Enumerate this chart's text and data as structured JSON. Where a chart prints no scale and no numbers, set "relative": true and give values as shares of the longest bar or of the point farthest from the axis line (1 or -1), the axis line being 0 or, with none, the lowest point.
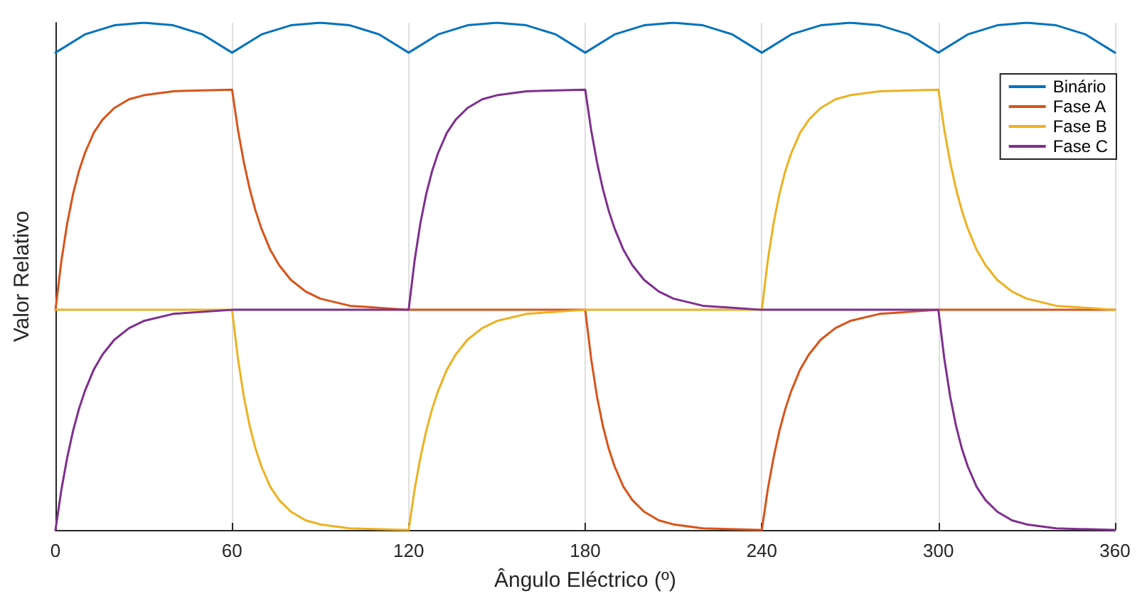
{
  "chart_data": {
    "type": "line",
    "relative": true,
    "xlabel": "Ângulo Eléctrico (º)",
    "ylabel": "Valor Relativo",
    "xlim": [
      0,
      360
    ],
    "xticks": [
      0,
      60,
      120,
      180,
      240,
      300,
      360
    ],
    "grid": "x",
    "legend": "top right",
    "tick_labels": "x",
    "marker": "none",
    "line_style": "solid",
    "series": [
      {
        "name": "Binário",
        "color": "#0072bd",
        "x": [
          0,
          10,
          20,
          30,
          40,
          50,
          60,
          70,
          80,
          90,
          100,
          110,
          120,
          130,
          140,
          150,
          160,
          170,
          180,
          190,
          200,
          210,
          220,
          230,
          240,
          250,
          260,
          270,
          280,
          290,
          300,
          310,
          320,
          330,
          340,
          350,
          360
        ],
        "values": [
          0.941,
          0.977,
          0.995,
          1,
          0.995,
          0.977,
          0.941,
          0.977,
          0.995,
          1,
          0.995,
          0.977,
          0.941,
          0.977,
          0.995,
          1,
          0.995,
          0.977,
          0.941,
          0.977,
          0.995,
          1,
          0.995,
          0.977,
          0.941,
          0.977,
          0.995,
          1,
          0.995,
          0.977,
          0.941,
          0.977,
          0.995,
          1,
          0.995,
          0.977,
          0.941
        ]
      },
      {
        "name": "Fase A",
        "color": "#d95319",
        "x": [
          0,
          2,
          4,
          6,
          8,
          10,
          13,
          16,
          20,
          25,
          30,
          40,
          60,
          62,
          64,
          66,
          68,
          70,
          73,
          76,
          80,
          85,
          90,
          100,
          120,
          180,
          182,
          184,
          186,
          188,
          190,
          193,
          196,
          200,
          205,
          210,
          220,
          240,
          242,
          244,
          246,
          248,
          250,
          253,
          256,
          260,
          265,
          270,
          280,
          300,
          360
        ],
        "values": [
          0.434,
          0.53,
          0.605,
          0.663,
          0.708,
          0.743,
          0.783,
          0.809,
          0.832,
          0.849,
          0.857,
          0.865,
          0.868,
          0.789,
          0.725,
          0.672,
          0.629,
          0.594,
          0.552,
          0.522,
          0.493,
          0.47,
          0.456,
          0.442,
          0.434,
          0.434,
          0.338,
          0.263,
          0.205,
          0.16,
          0.125,
          0.085,
          0.059,
          0.036,
          0.019,
          0.011,
          0.003,
          0,
          0.079,
          0.143,
          0.196,
          0.239,
          0.274,
          0.316,
          0.346,
          0.375,
          0.398,
          0.412,
          0.426,
          0.434,
          0.434
        ]
      },
      {
        "name": "Fase B",
        "color": "#edb120",
        "x": [
          0,
          60,
          62,
          64,
          66,
          68,
          70,
          73,
          76,
          80,
          85,
          90,
          100,
          120,
          122,
          124,
          126,
          128,
          130,
          133,
          136,
          140,
          145,
          150,
          160,
          180,
          240,
          242,
          244,
          246,
          248,
          250,
          253,
          256,
          260,
          265,
          270,
          280,
          300,
          302,
          304,
          306,
          308,
          310,
          313,
          316,
          320,
          325,
          330,
          340,
          360
        ],
        "values": [
          0.434,
          0.434,
          0.338,
          0.263,
          0.205,
          0.16,
          0.125,
          0.085,
          0.059,
          0.036,
          0.019,
          0.011,
          0.003,
          0,
          0.079,
          0.143,
          0.196,
          0.239,
          0.274,
          0.316,
          0.346,
          0.375,
          0.398,
          0.412,
          0.426,
          0.434,
          0.434,
          0.53,
          0.605,
          0.663,
          0.708,
          0.743,
          0.783,
          0.809,
          0.832,
          0.849,
          0.857,
          0.865,
          0.868,
          0.789,
          0.725,
          0.672,
          0.629,
          0.594,
          0.552,
          0.522,
          0.493,
          0.47,
          0.456,
          0.442,
          0.434
        ]
      },
      {
        "name": "Fase C",
        "color": "#7e2f8e",
        "x": [
          0,
          2,
          4,
          6,
          8,
          10,
          13,
          16,
          20,
          25,
          30,
          40,
          60,
          120,
          122,
          124,
          126,
          128,
          130,
          133,
          136,
          140,
          145,
          150,
          160,
          180,
          182,
          184,
          186,
          188,
          190,
          193,
          196,
          200,
          205,
          210,
          220,
          240,
          300,
          302,
          304,
          306,
          308,
          310,
          313,
          316,
          320,
          325,
          330,
          340,
          360
        ],
        "values": [
          0,
          0.079,
          0.143,
          0.196,
          0.239,
          0.274,
          0.316,
          0.346,
          0.375,
          0.398,
          0.412,
          0.426,
          0.434,
          0.434,
          0.53,
          0.605,
          0.663,
          0.708,
          0.743,
          0.783,
          0.809,
          0.832,
          0.849,
          0.857,
          0.865,
          0.868,
          0.789,
          0.725,
          0.672,
          0.629,
          0.594,
          0.552,
          0.522,
          0.493,
          0.47,
          0.456,
          0.442,
          0.434,
          0.434,
          0.338,
          0.263,
          0.205,
          0.16,
          0.125,
          0.085,
          0.059,
          0.036,
          0.019,
          0.011,
          0.003,
          0
        ]
      }
    ]
  }
}
